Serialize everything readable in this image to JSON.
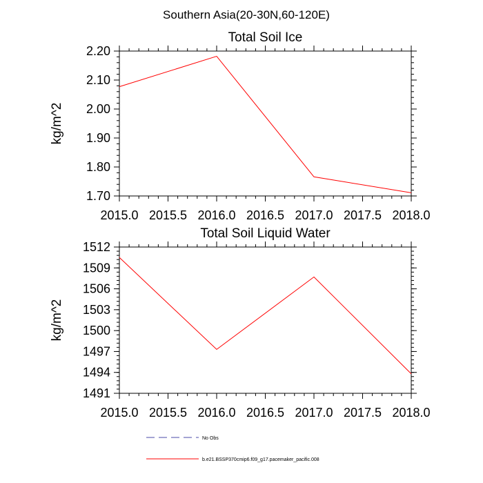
{
  "figure": {
    "suptitle": "Southern Asia(20-30N,60-120E)"
  },
  "chart_data": [
    {
      "type": "line",
      "title": "Total Soil Ice",
      "xlabel": "",
      "ylabel": "kg/m^2",
      "xlim": [
        2015.0,
        2018.0
      ],
      "ylim": [
        1.7,
        2.2
      ],
      "xticks": [
        2015.0,
        2015.5,
        2016.0,
        2016.5,
        2017.0,
        2017.5,
        2018.0
      ],
      "xtick_labels": [
        "2015.0",
        "2015.5",
        "2016.0",
        "2016.5",
        "2017.0",
        "2017.5",
        "2018.0"
      ],
      "yticks": [
        1.7,
        1.8,
        1.9,
        2.0,
        2.1,
        2.2
      ],
      "ytick_labels": [
        "1.70",
        "1.80",
        "1.90",
        "2.00",
        "2.10",
        "2.20"
      ],
      "yminor_step": 0.02,
      "xminor_step": 0.1,
      "series": [
        {
          "name": "b.e21.BSSP370cmip6.f09_g17.pacemaker_pacific.008",
          "color": "#ff0000",
          "x": [
            2015,
            2016,
            2017,
            2018
          ],
          "y": [
            2.077,
            2.182,
            1.766,
            1.711
          ]
        }
      ]
    },
    {
      "type": "line",
      "title": "Total Soil Liquid Water",
      "xlabel": "",
      "ylabel": "kg/m^2",
      "xlim": [
        2015.0,
        2018.0
      ],
      "ylim": [
        1491,
        1512
      ],
      "xticks": [
        2015.0,
        2015.5,
        2016.0,
        2016.5,
        2017.0,
        2017.5,
        2018.0
      ],
      "xtick_labels": [
        "2015.0",
        "2015.5",
        "2016.0",
        "2016.5",
        "2017.0",
        "2017.5",
        "2018.0"
      ],
      "yticks": [
        1491,
        1494,
        1497,
        1500,
        1503,
        1506,
        1509,
        1512
      ],
      "ytick_labels": [
        "1491",
        "1494",
        "1497",
        "1500",
        "1503",
        "1506",
        "1509",
        "1512"
      ],
      "yminor_step": 0.6,
      "xminor_step": 0.1,
      "series": [
        {
          "name": "b.e21.BSSP370cmip6.f09_g17.pacemaker_pacific.008",
          "color": "#ff0000",
          "x": [
            2015,
            2016,
            2017,
            2018
          ],
          "y": [
            1510.5,
            1497.3,
            1507.7,
            1493.8
          ]
        }
      ]
    }
  ],
  "legend": {
    "placement": "bottom-center",
    "entries": [
      {
        "label": "No Obs",
        "color": "#4a4aa8",
        "style": "dashed"
      },
      {
        "label": "b.e21.BSSP370cmip6.f09_g17.pacemaker_pacific.008",
        "color": "#ff0000",
        "style": "solid"
      }
    ]
  }
}
